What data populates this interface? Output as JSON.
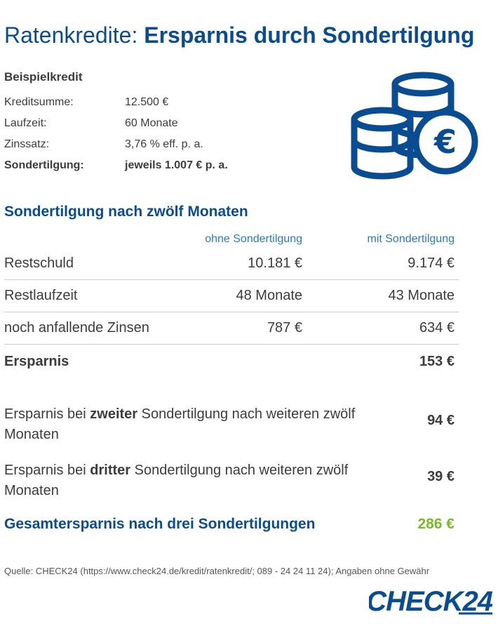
{
  "header": {
    "title_light": "Ratenkredite: ",
    "title_bold": "Ersparnis durch Sondertilgung"
  },
  "example": {
    "heading": "Beispielkredit",
    "rows": [
      {
        "label": "Kreditsumme:",
        "value": "12.500 €"
      },
      {
        "label": "Laufzeit:",
        "value": "60 Monate"
      },
      {
        "label": "Zinssatz:",
        "value": "3,76 % eff. p. a."
      },
      {
        "label": "Sondertilgung:",
        "value": "jeweils 1.007 € p. a."
      }
    ]
  },
  "icon": {
    "name": "euro-coins-icon",
    "color": "#0a4c92",
    "symbol": "€"
  },
  "section": {
    "title": "Sondertilgung nach zwölf Monaten",
    "col1": "ohne Sondertilgung",
    "col2": "mit Sondertilgung",
    "rows": [
      {
        "label": "Restschuld",
        "v1": "10.181 €",
        "v2": "9.174 €"
      },
      {
        "label": "Restlaufzeit",
        "v1": "48 Monate",
        "v2": "43 Monate"
      },
      {
        "label": "noch anfallende Zinsen",
        "v1": "787 €",
        "v2": "634 €"
      }
    ],
    "savings_label": "Ersparnis",
    "savings_value": "153 €"
  },
  "extras": [
    {
      "pre": "Ersparnis bei ",
      "bold": "zweiter",
      "post": " Sondertilgung nach weiteren zwölf Monaten",
      "value": "94 €"
    },
    {
      "pre": "Ersparnis bei ",
      "bold": "dritter",
      "post": " Sondertilgung nach weiteren zwölf Monaten",
      "value": "39 €"
    }
  ],
  "total": {
    "label": "Gesamtersparnis nach drei Sondertilgungen",
    "value": "286 €",
    "value_color": "#7ab929"
  },
  "source": "Quelle: CHECK24 (https://www.check24.de/kredit/ratenkredit/; 089 - 24 24 11 24); Angaben ohne Gewähr",
  "logo": {
    "text": "CHECK24",
    "color": "#0a4c92"
  }
}
